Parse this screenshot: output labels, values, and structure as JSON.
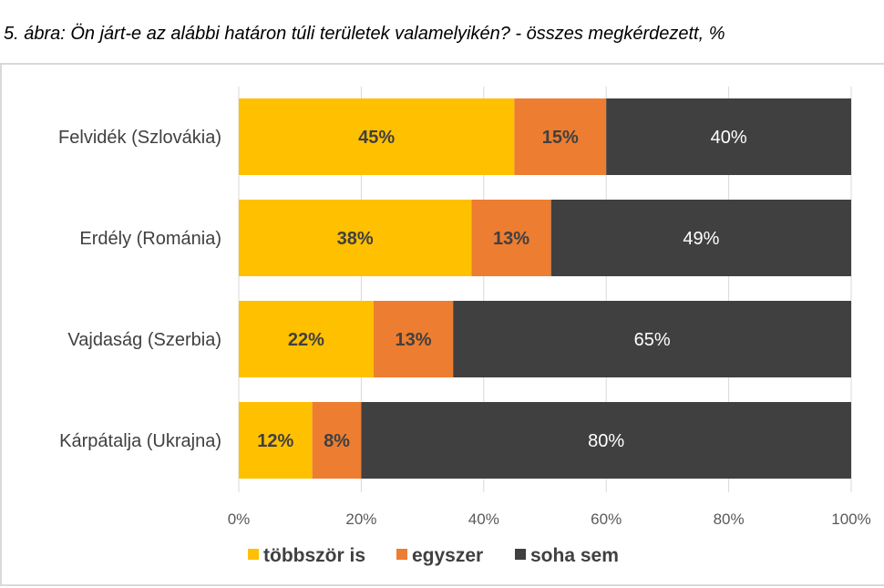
{
  "chart_data": {
    "type": "bar",
    "orientation": "horizontal",
    "stacked": true,
    "title": "5. ábra: Ön járt-e az alábbi határon túli területek valamelyikén? - összes megkérdezett, %",
    "categories": [
      "Felvidék (Szlovákia)",
      "Erdély (Románia)",
      "Vajdaság (Szerbia)",
      "Kárpátalja (Ukrajna)"
    ],
    "series": [
      {
        "name": "többször is",
        "color": "#FFC000",
        "values": [
          45,
          38,
          22,
          12
        ],
        "labels": [
          "45%",
          "38%",
          "22%",
          "12%"
        ]
      },
      {
        "name": "egyszer",
        "color": "#ED7D31",
        "values": [
          15,
          13,
          13,
          8
        ],
        "labels": [
          "15%",
          "13%",
          "13%",
          "8%"
        ]
      },
      {
        "name": "soha sem",
        "color": "#404040",
        "values": [
          40,
          49,
          65,
          80
        ],
        "labels": [
          "40%",
          "49%",
          "65%",
          "80%"
        ]
      }
    ],
    "xlim": [
      0,
      100
    ],
    "xticks": [
      "0%",
      "20%",
      "40%",
      "60%",
      "80%",
      "100%"
    ],
    "grid": true,
    "legend": "bottom"
  }
}
